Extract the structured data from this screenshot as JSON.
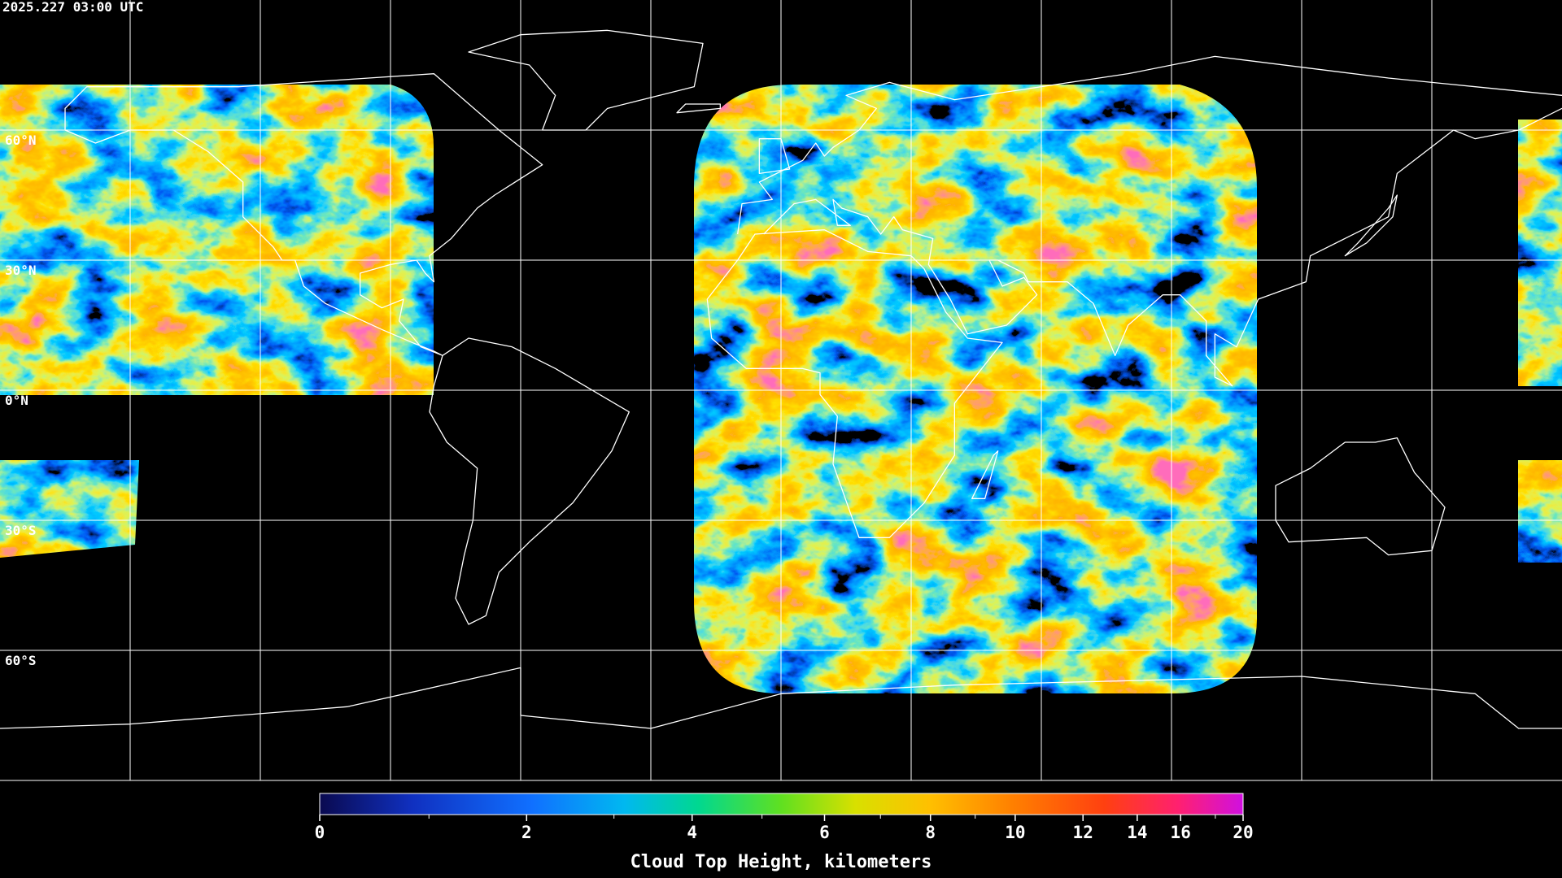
{
  "timestamp": "2025.227 03:00 UTC",
  "latitudes": [
    {
      "value": 60,
      "label": "60°N"
    },
    {
      "value": 30,
      "label": "30°N"
    },
    {
      "value": 0,
      "label": "0°N"
    },
    {
      "value": -30,
      "label": "30°S"
    },
    {
      "value": -60,
      "label": "60°S"
    }
  ],
  "meridians": [
    -150,
    -120,
    -90,
    -60,
    -30,
    0,
    30,
    60,
    90,
    120,
    150
  ],
  "colorbar": {
    "label": "Cloud Top Height, kilometers",
    "lim": [
      0,
      20
    ],
    "ticks": [
      0,
      2,
      4,
      6,
      8,
      10,
      12,
      14,
      16,
      20
    ],
    "minor_ticks": [
      1,
      3,
      5,
      7,
      9,
      18
    ]
  }
}
